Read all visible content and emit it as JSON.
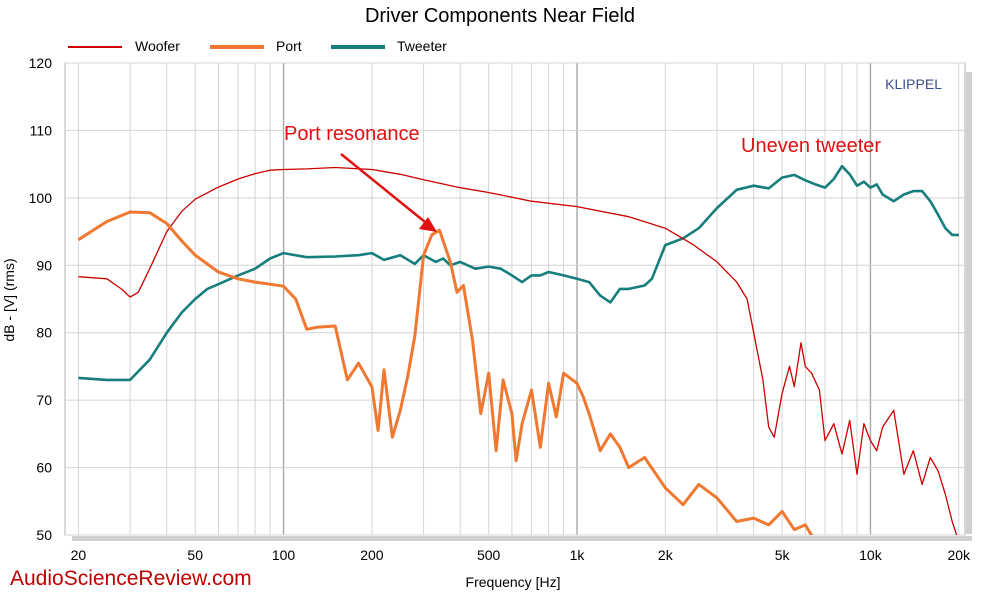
{
  "chart_data": {
    "type": "line",
    "title": "Driver Components Near Field",
    "xlabel": "Frequency [Hz]",
    "ylabel": "dB - [V] (rms)",
    "x_scale": "log",
    "xlim": [
      18,
      21000
    ],
    "ylim": [
      50,
      120
    ],
    "grid": true,
    "legend_position": "top-left",
    "x_ticks": [
      {
        "value": 20,
        "label": "20"
      },
      {
        "value": 50,
        "label": "50"
      },
      {
        "value": 100,
        "label": "100"
      },
      {
        "value": 200,
        "label": "200"
      },
      {
        "value": 500,
        "label": "500"
      },
      {
        "value": 1000,
        "label": "1k"
      },
      {
        "value": 2000,
        "label": "2k"
      },
      {
        "value": 5000,
        "label": "5k"
      },
      {
        "value": 10000,
        "label": "10k"
      },
      {
        "value": 20000,
        "label": "20k"
      }
    ],
    "y_ticks": [
      {
        "value": 50,
        "label": "50"
      },
      {
        "value": 60,
        "label": "60"
      },
      {
        "value": 70,
        "label": "70"
      },
      {
        "value": 80,
        "label": "80"
      },
      {
        "value": 90,
        "label": "90"
      },
      {
        "value": 100,
        "label": "100"
      },
      {
        "value": 110,
        "label": "110"
      },
      {
        "value": 120,
        "label": "120"
      }
    ],
    "series": [
      {
        "name": "Woofer",
        "color": "#cc0000",
        "x": [
          20,
          25,
          28,
          30,
          32,
          35,
          40,
          45,
          50,
          60,
          70,
          80,
          90,
          100,
          120,
          150,
          200,
          250,
          300,
          400,
          500,
          700,
          1000,
          1500,
          2000,
          2500,
          3000,
          3500,
          3800,
          4000,
          4300,
          4500,
          4700,
          5000,
          5300,
          5500,
          5800,
          6000,
          6300,
          6700,
          7000,
          7500,
          8000,
          8500,
          9000,
          9500,
          10000,
          10500,
          11000,
          12000,
          13000,
          14000,
          15000,
          16000,
          17000,
          18000,
          19000,
          20000
        ],
        "y": [
          88.3,
          88.0,
          86.5,
          85.3,
          86.0,
          89.5,
          95.0,
          98.0,
          99.8,
          101.6,
          102.8,
          103.6,
          104.1,
          104.2,
          104.3,
          104.5,
          104.2,
          103.5,
          102.7,
          101.5,
          100.8,
          99.5,
          98.7,
          97.2,
          95.5,
          93.0,
          90.5,
          87.5,
          85.0,
          80.0,
          73.0,
          66.0,
          64.5,
          71.0,
          75.0,
          72.0,
          78.5,
          75.0,
          74.0,
          71.5,
          64.0,
          66.5,
          62.0,
          67.0,
          59.0,
          66.5,
          64.0,
          62.5,
          66.0,
          68.5,
          59.0,
          62.5,
          57.5,
          61.5,
          59.5,
          56.0,
          52.0,
          49.0
        ]
      },
      {
        "name": "Port",
        "color": "#f07830",
        "x": [
          20,
          25,
          30,
          35,
          40,
          45,
          50,
          60,
          70,
          80,
          90,
          100,
          110,
          120,
          130,
          150,
          165,
          180,
          200,
          210,
          220,
          235,
          250,
          265,
          280,
          300,
          320,
          340,
          370,
          390,
          410,
          440,
          470,
          500,
          530,
          560,
          600,
          620,
          650,
          700,
          750,
          800,
          850,
          900,
          1000,
          1050,
          1100,
          1200,
          1300,
          1400,
          1500,
          1700,
          2000,
          2300,
          2600,
          3000,
          3500,
          4000,
          4500,
          5000,
          5500,
          6000,
          6500
        ],
        "y": [
          93.8,
          96.5,
          97.9,
          97.8,
          96.2,
          93.6,
          91.5,
          89.0,
          88.0,
          87.5,
          87.2,
          86.9,
          85.0,
          80.5,
          80.8,
          81.0,
          73.0,
          75.5,
          72.0,
          65.5,
          74.5,
          64.5,
          68.5,
          73.5,
          79.5,
          91.5,
          94.5,
          95.2,
          90.5,
          86.0,
          87.0,
          79.0,
          68.0,
          74.0,
          62.5,
          73.0,
          68.0,
          61.0,
          66.5,
          71.5,
          63.0,
          72.5,
          67.5,
          74.0,
          72.5,
          70.5,
          68.0,
          62.5,
          65.0,
          63.0,
          60.0,
          61.5,
          57.0,
          54.5,
          57.5,
          55.5,
          52.0,
          52.5,
          51.5,
          53.5,
          50.8,
          51.5,
          49.0
        ]
      },
      {
        "name": "Tweeter",
        "color": "#167e7c",
        "x": [
          20,
          25,
          30,
          35,
          40,
          45,
          50,
          55,
          60,
          70,
          80,
          90,
          100,
          120,
          150,
          180,
          200,
          220,
          250,
          280,
          300,
          330,
          350,
          370,
          400,
          450,
          500,
          550,
          600,
          650,
          700,
          750,
          800,
          900,
          1000,
          1100,
          1200,
          1300,
          1400,
          1500,
          1700,
          1800,
          2000,
          2300,
          2600,
          3000,
          3500,
          4000,
          4500,
          5000,
          5500,
          6000,
          6500,
          7000,
          7500,
          8000,
          8500,
          9000,
          9500,
          10000,
          10500,
          11000,
          12000,
          13000,
          14000,
          15000,
          16000,
          17000,
          18000,
          19000,
          20000
        ],
        "y": [
          73.3,
          73.0,
          73.0,
          76.0,
          80.0,
          83.0,
          85.0,
          86.5,
          87.2,
          88.5,
          89.5,
          91.0,
          91.8,
          91.2,
          91.3,
          91.5,
          91.8,
          90.8,
          91.5,
          90.2,
          91.5,
          90.5,
          91.0,
          90.0,
          90.5,
          89.5,
          89.8,
          89.5,
          88.5,
          87.5,
          88.5,
          88.5,
          89.0,
          88.5,
          88.0,
          87.5,
          85.5,
          84.5,
          86.5,
          86.5,
          87.0,
          88.0,
          93.0,
          94.0,
          95.5,
          98.5,
          101.2,
          101.8,
          101.4,
          103.0,
          103.4,
          102.6,
          102.0,
          101.5,
          102.8,
          104.7,
          103.5,
          101.8,
          102.4,
          101.5,
          102.0,
          100.5,
          99.5,
          100.5,
          101.0,
          101.0,
          99.5,
          97.5,
          95.5,
          94.5,
          94.5
        ]
      }
    ],
    "annotations": [
      {
        "text": "Port resonance",
        "color": "#e01010"
      },
      {
        "text": "Uneven tweeter",
        "color": "#e01010"
      }
    ]
  },
  "brand": "KLIPPEL",
  "watermark": "AudioScienceReview.com"
}
